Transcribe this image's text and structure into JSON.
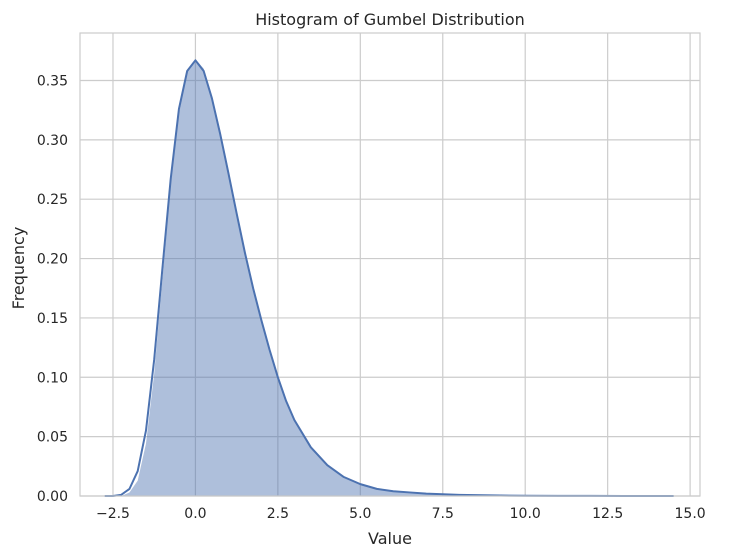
{
  "chart_data": {
    "type": "area",
    "title": "Histogram of Gumbel Distribution",
    "xlabel": "Value",
    "ylabel": "Frequency",
    "xlim": [
      -3.5,
      15.3
    ],
    "ylim": [
      0,
      0.39
    ],
    "xticks": [
      -2.5,
      0.0,
      2.5,
      5.0,
      7.5,
      10.0,
      12.5,
      15.0
    ],
    "xtick_labels": [
      "−2.5",
      "0.0",
      "2.5",
      "5.0",
      "7.5",
      "10.0",
      "12.5",
      "15.0"
    ],
    "yticks": [
      0.0,
      0.05,
      0.1,
      0.15,
      0.2,
      0.25,
      0.3,
      0.35
    ],
    "ytick_labels": [
      "0.00",
      "0.05",
      "0.10",
      "0.15",
      "0.20",
      "0.25",
      "0.30",
      "0.35"
    ],
    "grid": true,
    "legend": "none",
    "series": [
      {
        "kind": "histogram-density",
        "x": [
          -2.5,
          -2.25,
          -2.0,
          -1.75,
          -1.5,
          -1.25,
          -1.0,
          -0.75,
          -0.5,
          -0.25,
          0.0,
          0.25,
          0.5,
          0.75,
          1.0,
          1.25,
          1.5,
          1.75,
          2.0,
          2.25,
          2.5,
          2.75,
          3.0,
          3.5,
          4.0,
          4.5,
          5.0,
          5.5,
          6.0,
          6.5,
          7.0,
          8.0,
          9.0,
          10.0,
          11.0,
          12.0,
          13.0,
          14.0,
          14.5
        ],
        "values": [
          0.0,
          0.0,
          0.003,
          0.013,
          0.044,
          0.103,
          0.183,
          0.262,
          0.322,
          0.357,
          0.368,
          0.36,
          0.337,
          0.308,
          0.275,
          0.24,
          0.206,
          0.176,
          0.149,
          0.123,
          0.1,
          0.079,
          0.063,
          0.04,
          0.026,
          0.016,
          0.01,
          0.006,
          0.004,
          0.003,
          0.002,
          0.001,
          0.0005,
          0.0002,
          0.0001,
          0.0001,
          0.0,
          0.0,
          0.0
        ]
      },
      {
        "kind": "kde-line",
        "x": [
          -2.75,
          -2.5,
          -2.25,
          -2.0,
          -1.75,
          -1.5,
          -1.25,
          -1.0,
          -0.75,
          -0.5,
          -0.25,
          0.0,
          0.25,
          0.5,
          0.75,
          1.0,
          1.25,
          1.5,
          1.75,
          2.0,
          2.25,
          2.5,
          2.75,
          3.0,
          3.5,
          4.0,
          4.5,
          5.0,
          5.5,
          6.0,
          6.5,
          7.0,
          8.0,
          9.0,
          10.0,
          11.0,
          12.0,
          13.0,
          14.0,
          14.5
        ],
        "values": [
          0.0,
          0.0,
          0.001,
          0.006,
          0.021,
          0.055,
          0.115,
          0.192,
          0.267,
          0.326,
          0.358,
          0.367,
          0.358,
          0.335,
          0.305,
          0.272,
          0.238,
          0.205,
          0.175,
          0.148,
          0.123,
          0.1,
          0.08,
          0.064,
          0.041,
          0.026,
          0.016,
          0.01,
          0.006,
          0.004,
          0.003,
          0.002,
          0.001,
          0.0005,
          0.0002,
          0.0001,
          0.0001,
          0.0,
          0.0,
          0.0
        ]
      }
    ]
  },
  "colors": {
    "fill": "#4c72b0",
    "line": "#4c72b0",
    "grid": "#cccccc",
    "spine": "#cccccc",
    "text": "#262626"
  }
}
